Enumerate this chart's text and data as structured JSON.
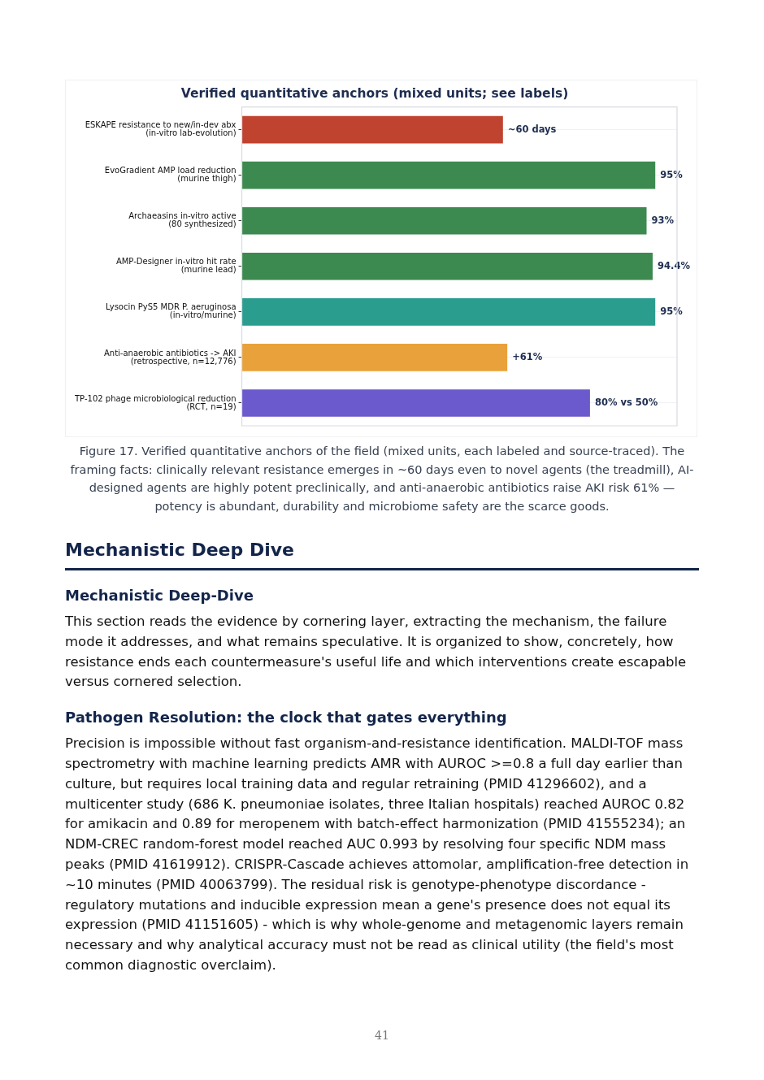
{
  "chart_data": {
    "type": "bar",
    "orientation": "horizontal",
    "xlim": [
      0,
      100
    ],
    "title": "Verified quantitative anchors (mixed units; see labels)",
    "categories": [
      "ESKAPE resistance to new/in-dev abx\n(in-vitro lab-evolution)",
      "EvoGradient AMP load reduction\n(murine thigh)",
      "Archaeasins in-vitro active\n(80 synthesized)",
      "AMP-Designer in-vitro hit rate\n(murine lead)",
      "Lysocin PyS5 MDR P. aeruginosa\n(in-vitro/murine)",
      "Anti-anaerobic antibiotics -> AKI\n(retrospective, n=12,776)",
      "TP-102 phage microbiological reduction\n(RCT, n=19)"
    ],
    "values": [
      60,
      95,
      93,
      94.4,
      95,
      61,
      80
    ],
    "colors": [
      "#c0432f",
      "#3d8a50",
      "#3d8a50",
      "#3d8a50",
      "#2a9d8f",
      "#e9a23b",
      "#6a5acd"
    ],
    "value_labels": [
      "~60 days",
      "95%",
      "93%",
      "94.4%",
      "95%",
      "+61%",
      "80% vs 50%"
    ],
    "grid": "y",
    "annotations": [
      "Figure 17. Verified quantitative anchors of the field (mixed units, each labeled and source-traced). The framing facts: clinically relevant resistance emerges in ~60 days even to novel agents (the treadmill), AI-designed agents are highly potent preclinically, and anti-anaerobic antibiotics raise AKI risk 61% — potency is abundant, durability and microbiome safety are the scarce goods.",
      "Mechanistic Deep Dive",
      "Mechanistic Deep-Dive",
      "This section reads the evidence by cornering layer, extracting the mechanism, the failure mode it addresses, and what remains speculative. It is organized to show, concretely, how resistance ends each countermeasure's useful life and which interventions create escapable versus cornered selection.",
      "Pathogen Resolution: the clock that gates everything",
      "Precision is impossible without fast organism-and-resistance identification. MALDI-TOF mass spectrometry with machine learning predicts AMR with AUROC >=0.8 a full day earlier than culture, but requires local training data and regular retraining (PMID 41296602), and a multicenter study (686 K. pneumoniae isolates, three Italian hospitals) reached AUROC 0.82 for amikacin and 0.89 for meropenem with batch-effect harmonization (PMID 41555234); an NDM-CREC random-forest model reached AUC 0.993 by resolving four specific NDM mass peaks (PMID 41619912). CRISPR-Cascade achieves attomolar, amplification-free detection in ~10 minutes (PMID 40063799). The residual risk is genotype-phenotype discordance - regulatory mutations and inducible expression mean a gene's presence does not equal its expression (PMID 41151605) - which is why whole-genome and metagenomic layers remain necessary and why analytical accuracy must not be read as clinical utility (the field's most common diagnostic overclaim).",
      "41"
    ]
  }
}
